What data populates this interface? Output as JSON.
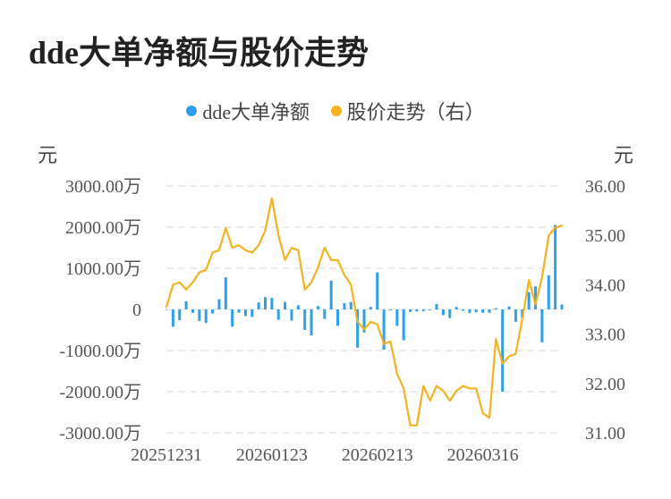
{
  "chart_data": {
    "type": "bar",
    "title": "dde大单净额与股价走势",
    "legend": {
      "placement": "top-center",
      "items": [
        {
          "name": "dde大单净额",
          "color": "#2f9fe8"
        },
        {
          "name": "股价走势（右）",
          "color": "#f5b21f"
        }
      ]
    },
    "left_unit": "元",
    "right_unit": "元",
    "left_ticks": [
      "3000.00万",
      "2000.00万",
      "1000.00万",
      "0",
      "-1000.00万",
      "-2000.00万",
      "-3000.00万"
    ],
    "right_ticks": [
      "36.00",
      "35.00",
      "34.00",
      "33.00",
      "32.00",
      "31.00"
    ],
    "x_ticks": [
      "20251231",
      "20260123",
      "20260213",
      "20260316"
    ],
    "left_ylim": [
      -3000,
      3000
    ],
    "right_ylim": [
      31,
      36
    ],
    "grid": true,
    "series": [
      {
        "name": "dde大单净额",
        "type": "bar",
        "axis": "left",
        "color": "#2f9fe8",
        "values": [
          0,
          -420,
          -260,
          200,
          -80,
          -280,
          -330,
          -100,
          250,
          780,
          -420,
          -80,
          -160,
          -180,
          170,
          300,
          280,
          -250,
          180,
          -270,
          100,
          -500,
          -630,
          80,
          -230,
          700,
          -400,
          150,
          180,
          -930,
          -560,
          60,
          900,
          -980,
          -20,
          -400,
          -750,
          -60,
          -50,
          -40,
          -20,
          130,
          -140,
          -210,
          60,
          -30,
          -90,
          -70,
          -80,
          -80,
          30,
          -2000,
          70,
          -300,
          -200,
          420,
          560,
          -800,
          830,
          2050,
          120
        ]
      },
      {
        "name": "股价走势（右）",
        "type": "line",
        "axis": "right",
        "color": "#f5b21f",
        "values": [
          33.55,
          34.0,
          34.05,
          33.9,
          34.05,
          34.25,
          34.3,
          34.65,
          34.7,
          35.15,
          34.75,
          34.8,
          34.7,
          34.65,
          34.8,
          35.1,
          35.75,
          35.0,
          34.5,
          34.75,
          34.7,
          33.9,
          34.05,
          34.35,
          34.75,
          34.5,
          34.5,
          34.2,
          34.0,
          33.25,
          33.1,
          33.25,
          33.2,
          32.8,
          32.85,
          32.2,
          31.9,
          31.15,
          31.15,
          31.95,
          31.65,
          31.95,
          31.85,
          31.65,
          31.85,
          31.95,
          31.9,
          31.9,
          31.4,
          31.3,
          32.9,
          32.4,
          32.55,
          32.6,
          33.3,
          34.1,
          33.6,
          34.15,
          35.0,
          35.15,
          35.2
        ]
      }
    ]
  }
}
